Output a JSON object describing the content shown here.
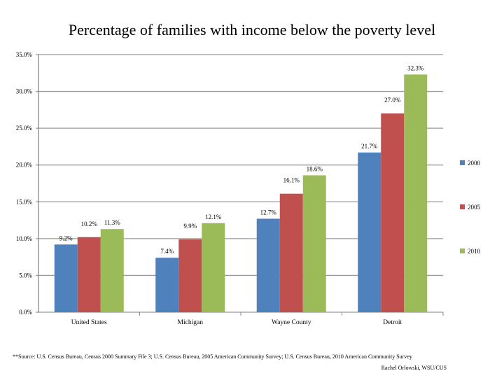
{
  "chart_data": {
    "type": "bar",
    "title": "Percentage of families with income below the poverty level",
    "categories": [
      "United States",
      "Michigan",
      "Wayne County",
      "Detroit"
    ],
    "series": [
      {
        "name": "2000",
        "color": "#4F81BD",
        "values": [
          9.2,
          7.4,
          12.7,
          21.7
        ]
      },
      {
        "name": "2005",
        "color": "#C0504D",
        "values": [
          10.2,
          9.9,
          16.1,
          27.0
        ]
      },
      {
        "name": "2010",
        "color": "#9BBB59",
        "values": [
          11.3,
          12.1,
          18.6,
          32.3
        ]
      }
    ],
    "ylim": [
      0,
      35
    ],
    "yticks": [
      "0.0%",
      "5.0%",
      "10.0%",
      "15.0%",
      "20.0%",
      "25.0%",
      "30.0%",
      "35.0%"
    ],
    "grid": true,
    "legend": "right",
    "data_labels": true
  },
  "footer": {
    "source": "**Source: U.S. Census Bureau, Census 2000 Summary File 3; U.S. Census Bureau, 2005 American Community Survey; U.S. Census Bureau, 2010 American Community Survey",
    "credit": "Rachel Orlowski, WSU/CUS"
  }
}
